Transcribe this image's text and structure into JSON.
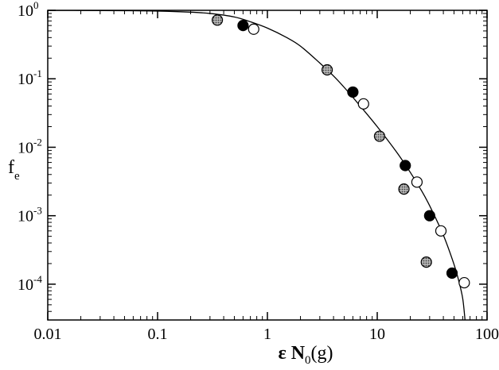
{
  "chart_data": {
    "type": "scatter",
    "title": "",
    "xlabel": "ε N0(g)",
    "xlabel_main": "ε N",
    "xlabel_sub": "0",
    "xlabel_tail": "(g)",
    "ylabel": "fe",
    "ylabel_main": "f",
    "ylabel_sub": "e",
    "xscale": "log",
    "yscale": "log",
    "xlim": [
      0.01,
      100
    ],
    "ylim": [
      3e-05,
      1
    ],
    "x_ticks": [
      {
        "value": 0.01,
        "label": "0.01"
      },
      {
        "value": 0.1,
        "label": "0.1"
      },
      {
        "value": 1,
        "label": "1"
      },
      {
        "value": 10,
        "label": "10"
      },
      {
        "value": 100,
        "label": "100"
      }
    ],
    "y_ticks": [
      {
        "value": 1,
        "base": "10",
        "exp": "0"
      },
      {
        "value": 0.1,
        "base": "10",
        "exp": "-1"
      },
      {
        "value": 0.01,
        "base": "10",
        "exp": "-2"
      },
      {
        "value": 0.001,
        "base": "10",
        "exp": "-3"
      },
      {
        "value": 0.0001,
        "base": "10",
        "exp": "-4"
      }
    ],
    "grid": false,
    "legend": "none",
    "series": [
      {
        "style": "hatched",
        "fill": "#9a9a9a",
        "points": [
          {
            "x": 0.35,
            "y": 0.72
          },
          {
            "x": 3.5,
            "y": 0.135
          },
          {
            "x": 10.5,
            "y": 0.0145
          },
          {
            "x": 17.5,
            "y": 0.00245
          },
          {
            "x": 28,
            "y": 0.00021
          }
        ]
      },
      {
        "style": "filled",
        "fill": "#000000",
        "points": [
          {
            "x": 0.6,
            "y": 0.6
          },
          {
            "x": 6,
            "y": 0.064
          },
          {
            "x": 18,
            "y": 0.0054
          },
          {
            "x": 30,
            "y": 0.001
          },
          {
            "x": 48,
            "y": 0.000145
          }
        ]
      },
      {
        "style": "open",
        "fill": "#ffffff",
        "points": [
          {
            "x": 0.75,
            "y": 0.53
          },
          {
            "x": 7.5,
            "y": 0.043
          },
          {
            "x": 23,
            "y": 0.0031
          },
          {
            "x": 38,
            "y": 0.0006
          },
          {
            "x": 62,
            "y": 0.000105
          }
        ]
      }
    ],
    "curve": {
      "description": "fit",
      "x": [
        0.01,
        0.02,
        0.05,
        0.1,
        0.2,
        0.3,
        0.5,
        0.7,
        1,
        1.5,
        2,
        3,
        4,
        5,
        7,
        10,
        15,
        20,
        25,
        30,
        40,
        50,
        55,
        60,
        63
      ],
      "y": [
        0.998,
        0.995,
        0.988,
        0.975,
        0.94,
        0.9,
        0.8,
        0.68,
        0.55,
        0.4,
        0.3,
        0.17,
        0.11,
        0.075,
        0.04,
        0.02,
        0.0085,
        0.0043,
        0.0024,
        0.0014,
        0.00052,
        0.000195,
        0.000115,
        6.2e-05,
        3e-05
      ]
    }
  }
}
